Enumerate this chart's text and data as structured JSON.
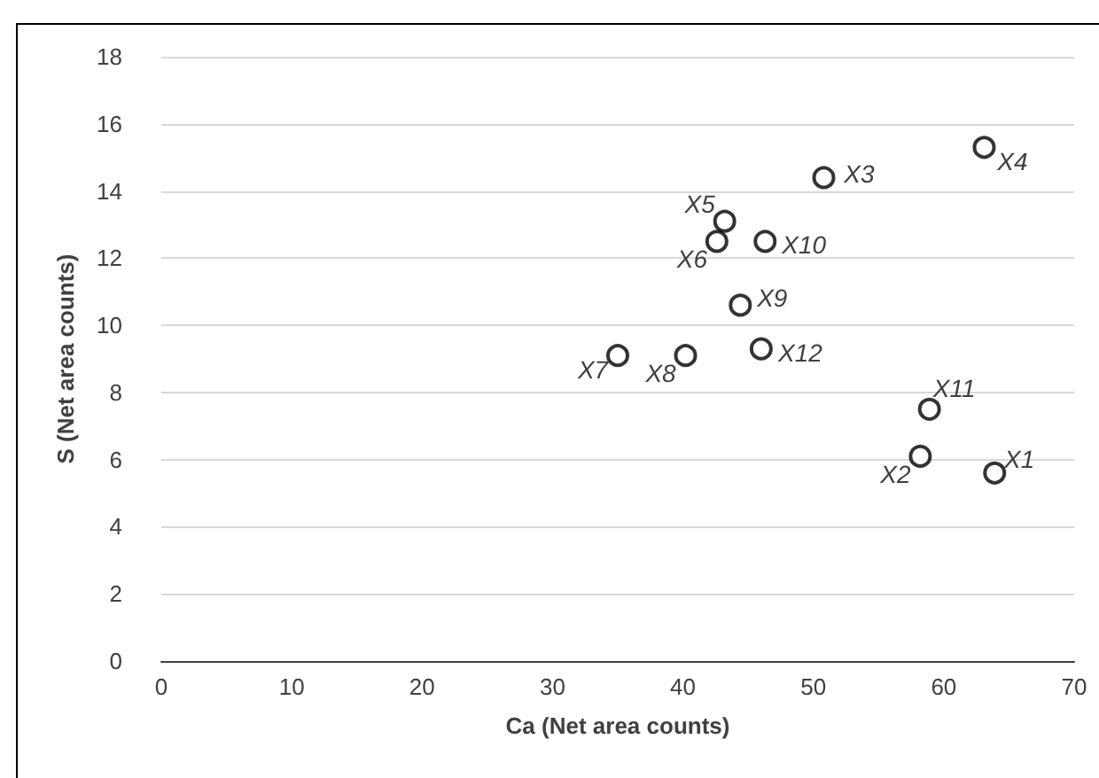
{
  "chart_data": {
    "type": "scatter",
    "xlabel": "Ca (Net area counts)",
    "ylabel": "S (Net area counts)",
    "x": [
      63.9,
      58.2,
      50.8,
      63.1,
      43.2,
      42.6,
      35.0,
      40.2,
      44.4,
      46.3,
      58.9,
      46.0
    ],
    "values": [
      5.6,
      6.1,
      14.4,
      15.3,
      13.1,
      12.5,
      9.1,
      9.1,
      10.6,
      12.5,
      7.5,
      9.3
    ],
    "color": "#000000",
    "marker": "circle",
    "xlim": [
      0,
      70
    ],
    "xticks": [
      0,
      10,
      20,
      30,
      40,
      50,
      60,
      70
    ],
    "ylim": [
      0,
      18
    ],
    "yticks": [
      0,
      2,
      4,
      6,
      8,
      10,
      12,
      14,
      16,
      18
    ],
    "grid": "y",
    "annotations": [
      {
        "text": "X1",
        "x": 63.9,
        "y": 5.6
      },
      {
        "text": "X2",
        "x": 58.2,
        "y": 6.1
      },
      {
        "text": "X3",
        "x": 50.8,
        "y": 14.4
      },
      {
        "text": "X4",
        "x": 63.1,
        "y": 15.3
      },
      {
        "text": "X5",
        "x": 43.2,
        "y": 13.1
      },
      {
        "text": "X6",
        "x": 42.6,
        "y": 12.5
      },
      {
        "text": "X7",
        "x": 35.0,
        "y": 9.1
      },
      {
        "text": "X8",
        "x": 40.2,
        "y": 9.1
      },
      {
        "text": "X9",
        "x": 44.4,
        "y": 10.6
      },
      {
        "text": "X10",
        "x": 46.3,
        "y": 12.5
      },
      {
        "text": "X11",
        "x": 58.9,
        "y": 7.5
      },
      {
        "text": "X12",
        "x": 46.0,
        "y": 9.3
      }
    ]
  }
}
